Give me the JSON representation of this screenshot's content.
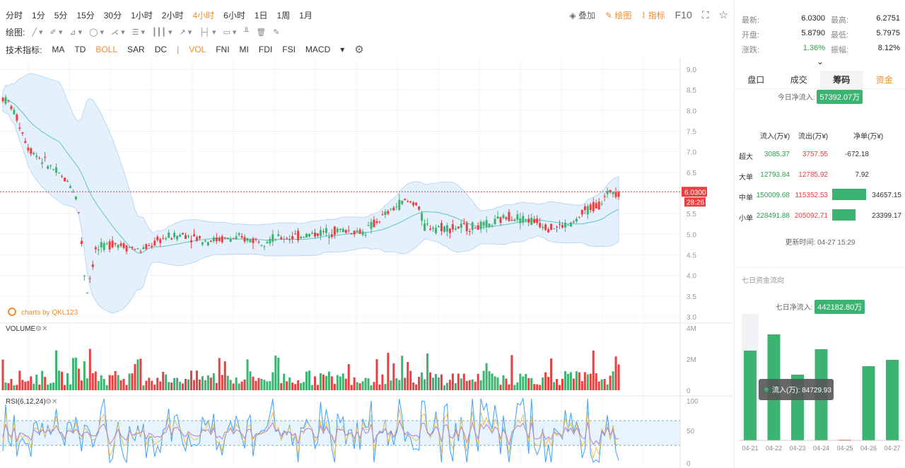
{
  "timeframes": [
    "分时",
    "1分",
    "5分",
    "15分",
    "30分",
    "1小时",
    "2小时",
    "4小时",
    "6小时",
    "1日",
    "1周",
    "1月"
  ],
  "active_timeframe": "4小时",
  "toolbar_right": {
    "overlay": "叠加",
    "draw": "绘图",
    "indicator": "指标",
    "f10": "F10"
  },
  "draw_label": "绘图:",
  "indicator_label": "技术指标:",
  "indicators_main": [
    "MA",
    "TD",
    "BOLL",
    "SAR",
    "DC"
  ],
  "indicators_sub": [
    "VOL",
    "FNI",
    "MI",
    "FDI",
    "FSI",
    "MACD"
  ],
  "active_indicators": [
    "BOLL",
    "VOL"
  ],
  "watermark": "charts by QKL123",
  "price_axis": [
    "9.0",
    "8.5",
    "8.0",
    "7.5",
    "7.0",
    "6.5",
    "6.0",
    "5.5",
    "5.0",
    "4.5",
    "4.0",
    "3.5",
    "3.0"
  ],
  "current_price": "6.0300",
  "countdown": "28:26",
  "volume_label": "VOLUME",
  "volume_axis": [
    "4M",
    "2M",
    "0"
  ],
  "rsi_label": "RSI(6,12,24)",
  "rsi_axis": [
    "100",
    "50",
    "0"
  ],
  "colors": {
    "up": "#3cb371",
    "down": "#e84040",
    "accent": "#f08c2d",
    "band": "#ddeefc"
  },
  "quote": {
    "latest_label": "最新:",
    "latest": "6.0300",
    "high_label": "最高:",
    "high": "6.2751",
    "open_label": "开盘:",
    "open": "5.8790",
    "low_label": "最低:",
    "low": "5.7975",
    "change_label": "涨跌:",
    "change": "1.36%",
    "amplitude_label": "振幅:",
    "amplitude": "8.12%"
  },
  "tabs": [
    "盘口",
    "成交",
    "筹码",
    "资金"
  ],
  "today_inflow_label": "今日净流入:",
  "today_inflow": "57392.07万",
  "flow_headers": [
    "流入(万¥)",
    "流出(万¥)",
    "净单(万¥)"
  ],
  "flows": [
    {
      "name": "超大",
      "in": "3085.37",
      "out": "3757.55",
      "net": "-672.18",
      "frac": 0.01
    },
    {
      "name": "大单",
      "in": "12793.84",
      "out": "12785.92",
      "net": "7.92",
      "frac": 0.0
    },
    {
      "name": "中单",
      "in": "150009.68",
      "out": "115352.53",
      "net": "34657.15",
      "frac": 1.0
    },
    {
      "name": "小单",
      "in": "228491.88",
      "out": "205092.71",
      "net": "23399.17",
      "frac": 0.68
    }
  ],
  "update_time_label": "更新时间:",
  "update_time": "04-27 15:29",
  "seven_day_title": "七日资金流向",
  "seven_day_inflow_label": "七日净流入:",
  "seven_day_inflow": "442182.80万",
  "chart_data": {
    "type": "bar",
    "categories": [
      "04-21",
      "04-22",
      "04-23",
      "04-24",
      "04-25",
      "04-26",
      "04-27"
    ],
    "values": [
      84729.93,
      100000,
      62000,
      86000,
      300,
      70000,
      76000
    ],
    "tooltip": "流入(万): 84729.93"
  }
}
